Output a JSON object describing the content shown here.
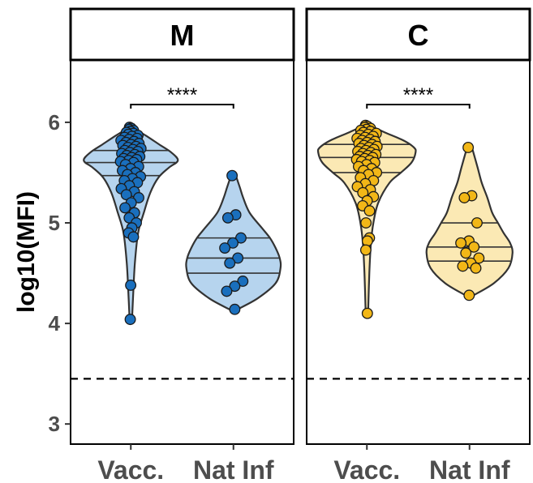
{
  "chart_data": {
    "type": "violin",
    "ylabel": "log10(MFI)",
    "ylim": [
      2.8,
      6.62
    ],
    "yticks": [
      3,
      4,
      5,
      6
    ],
    "categories": [
      "Vacc.",
      "Nat Inf"
    ],
    "threshold": 3.45,
    "grid": false,
    "panels": [
      {
        "strip": "M",
        "fill_color": "#b6d4ee",
        "point_color": "#1a6fbd",
        "significance": "****",
        "groups": [
          {
            "category": "Vacc.",
            "quartiles": [
              5.47,
              5.6,
              5.72
            ],
            "violin": {
              "y": [
                4.04,
                4.3,
                4.6,
                4.9,
                5.1,
                5.3,
                5.45,
                5.55,
                5.62,
                5.7,
                5.78,
                5.85,
                5.9,
                5.95
              ],
              "w": [
                0.015,
                0.03,
                0.05,
                0.09,
                0.16,
                0.24,
                0.34,
                0.47,
                0.58,
                0.5,
                0.35,
                0.22,
                0.12,
                0.03
              ]
            },
            "points": [
              5.95,
              5.94,
              5.93,
              5.92,
              5.91,
              5.9,
              5.89,
              5.88,
              5.87,
              5.86,
              5.85,
              5.84,
              5.83,
              5.82,
              5.81,
              5.8,
              5.79,
              5.78,
              5.77,
              5.76,
              5.75,
              5.74,
              5.73,
              5.72,
              5.71,
              5.7,
              5.69,
              5.68,
              5.67,
              5.66,
              5.65,
              5.64,
              5.63,
              5.62,
              5.61,
              5.6,
              5.58,
              5.56,
              5.54,
              5.52,
              5.5,
              5.48,
              5.46,
              5.44,
              5.42,
              5.4,
              5.37,
              5.34,
              5.31,
              5.28,
              5.25,
              5.2,
              5.15,
              5.1,
              5.05,
              5.0,
              4.95,
              4.9,
              4.86,
              4.38,
              4.04
            ]
          },
          {
            "category": "Nat Inf",
            "quartiles": [
              4.5,
              4.65,
              4.85
            ],
            "violin": {
              "y": [
                4.14,
                4.25,
                4.4,
                4.55,
                4.65,
                4.75,
                4.85,
                4.95,
                5.1,
                5.25,
                5.35,
                5.47
              ],
              "w": [
                0.05,
                0.3,
                0.52,
                0.58,
                0.57,
                0.52,
                0.45,
                0.35,
                0.2,
                0.12,
                0.08,
                0.03
              ]
            },
            "points": [
              5.47,
              5.08,
              5.05,
              4.85,
              4.8,
              4.75,
              4.65,
              4.6,
              4.42,
              4.37,
              4.32,
              4.14
            ]
          }
        ]
      },
      {
        "strip": "C",
        "fill_color": "#fbe9b4",
        "point_color": "#f2b717",
        "significance": "****",
        "groups": [
          {
            "category": "Vacc.",
            "quartiles": [
              5.5,
              5.65,
              5.78
            ],
            "violin": {
              "y": [
                4.1,
                4.5,
                4.8,
                5.0,
                5.2,
                5.4,
                5.5,
                5.6,
                5.7,
                5.75,
                5.82,
                5.9,
                5.97
              ],
              "w": [
                0.015,
                0.03,
                0.05,
                0.08,
                0.14,
                0.28,
                0.42,
                0.55,
                0.6,
                0.58,
                0.45,
                0.22,
                0.03
              ]
            },
            "points": [
              5.97,
              5.96,
              5.95,
              5.94,
              5.93,
              5.92,
              5.91,
              5.9,
              5.89,
              5.88,
              5.87,
              5.86,
              5.85,
              5.84,
              5.83,
              5.82,
              5.81,
              5.8,
              5.79,
              5.78,
              5.77,
              5.76,
              5.75,
              5.74,
              5.73,
              5.72,
              5.71,
              5.7,
              5.69,
              5.68,
              5.67,
              5.66,
              5.65,
              5.64,
              5.63,
              5.62,
              5.61,
              5.6,
              5.58,
              5.56,
              5.54,
              5.52,
              5.5,
              5.48,
              5.45,
              5.42,
              5.39,
              5.36,
              5.33,
              5.3,
              5.26,
              5.22,
              5.17,
              5.12,
              5.0,
              4.85,
              4.82,
              4.73,
              4.1
            ]
          },
          {
            "category": "Nat Inf",
            "quartiles": [
              4.62,
              4.76,
              5.0
            ],
            "violin": {
              "y": [
                4.28,
                4.4,
                4.55,
                4.7,
                4.8,
                4.9,
                5.0,
                5.1,
                5.25,
                5.4,
                5.55,
                5.75
              ],
              "w": [
                0.05,
                0.3,
                0.48,
                0.53,
                0.5,
                0.42,
                0.35,
                0.28,
                0.22,
                0.15,
                0.1,
                0.03
              ]
            },
            "points": [
              5.75,
              5.27,
              5.25,
              5.0,
              4.82,
              4.8,
              4.76,
              4.7,
              4.65,
              4.6,
              4.57,
              4.55,
              4.28
            ]
          }
        ]
      }
    ]
  }
}
